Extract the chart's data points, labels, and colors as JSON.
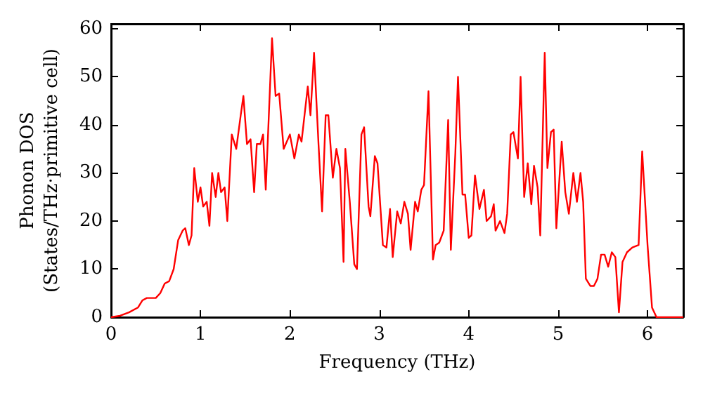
{
  "chart_data": {
    "type": "line",
    "xlabel": "Frequency (THz)",
    "ylabel": "Phonon DOS\n(States/THz·primitive cell)",
    "xlim": [
      0,
      6.4
    ],
    "xticks": [
      0,
      1,
      2,
      3,
      4,
      5,
      6
    ],
    "ylim": [
      0,
      61
    ],
    "yticks": [
      0,
      10,
      20,
      30,
      40,
      50,
      60
    ],
    "grid": false,
    "marker": "none",
    "line_style": "solid",
    "series": [
      {
        "color": "#ff0000",
        "x": [
          0,
          0.1,
          0.2,
          0.3,
          0.35,
          0.4,
          0.5,
          0.55,
          0.6,
          0.65,
          0.7,
          0.75,
          0.8,
          0.83,
          0.87,
          0.9,
          0.93,
          0.97,
          1.0,
          1.03,
          1.07,
          1.1,
          1.13,
          1.17,
          1.2,
          1.23,
          1.27,
          1.3,
          1.35,
          1.4,
          1.45,
          1.48,
          1.52,
          1.56,
          1.6,
          1.63,
          1.67,
          1.7,
          1.73,
          1.8,
          1.84,
          1.88,
          1.93,
          2.0,
          2.05,
          2.1,
          2.13,
          2.2,
          2.23,
          2.27,
          2.32,
          2.36,
          2.4,
          2.43,
          2.48,
          2.52,
          2.56,
          2.6,
          2.62,
          2.67,
          2.72,
          2.75,
          2.8,
          2.83,
          2.88,
          2.9,
          2.95,
          2.98,
          3.04,
          3.08,
          3.12,
          3.15,
          3.2,
          3.24,
          3.28,
          3.32,
          3.35,
          3.4,
          3.43,
          3.47,
          3.5,
          3.55,
          3.6,
          3.63,
          3.67,
          3.72,
          3.77,
          3.8,
          3.85,
          3.88,
          3.93,
          3.96,
          4.0,
          4.03,
          4.07,
          4.12,
          4.17,
          4.2,
          4.25,
          4.28,
          4.3,
          4.35,
          4.4,
          4.43,
          4.47,
          4.5,
          4.55,
          4.58,
          4.62,
          4.66,
          4.7,
          4.73,
          4.77,
          4.8,
          4.85,
          4.88,
          4.92,
          4.95,
          4.98,
          5.04,
          5.08,
          5.12,
          5.17,
          5.21,
          5.25,
          5.28,
          5.31,
          5.36,
          5.4,
          5.44,
          5.48,
          5.52,
          5.56,
          5.6,
          5.64,
          5.68,
          5.72,
          5.77,
          5.83,
          5.9,
          5.94,
          6.0,
          6.05,
          6.1,
          6.4
        ],
        "values": [
          0,
          0.3,
          1,
          2,
          3.5,
          4,
          4,
          5,
          7,
          7.5,
          10,
          16,
          18,
          18.5,
          15,
          17,
          31,
          24,
          27,
          23,
          24,
          19,
          30,
          25,
          30,
          26,
          27,
          20,
          38,
          35,
          42,
          46,
          36,
          37,
          26,
          36,
          36,
          38,
          26.5,
          58,
          46,
          46.5,
          35,
          38,
          33,
          38,
          36.5,
          48,
          42,
          55,
          36,
          22,
          42,
          42,
          29,
          35,
          31,
          11.5,
          35,
          24,
          11,
          10,
          38,
          39.5,
          23,
          21,
          33.5,
          32,
          15,
          14.5,
          22.5,
          12.5,
          22,
          19.5,
          24,
          21.5,
          14,
          24,
          22,
          26.5,
          27.5,
          47,
          12,
          15,
          15.5,
          18,
          41,
          14,
          34,
          50,
          25.5,
          25.5,
          16.5,
          17,
          29.5,
          22.5,
          26.5,
          20,
          21,
          23.5,
          18,
          20,
          17.5,
          21.5,
          38,
          38.5,
          33,
          50,
          25,
          32,
          23.5,
          31.5,
          27,
          17,
          55,
          31,
          38.5,
          39,
          18.5,
          36.5,
          26,
          21.5,
          30,
          24,
          30,
          24,
          8,
          6.5,
          6.5,
          8,
          13,
          13,
          10.5,
          13.5,
          12.5,
          1,
          11.5,
          13.5,
          14.5,
          15,
          34.5,
          15,
          2,
          0,
          0
        ]
      }
    ]
  }
}
